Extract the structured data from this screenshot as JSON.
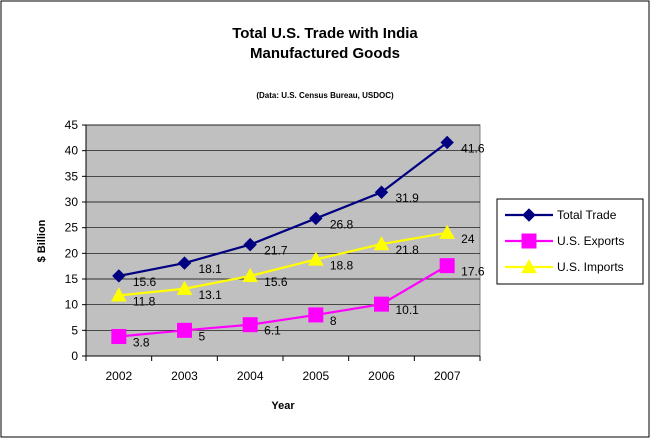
{
  "chart_data": {
    "type": "line",
    "title": "Total U.S. Trade with India",
    "subtitle": "Manufactured Goods",
    "source_note": "(Data:  U.S. Census Bureau, USDOC)",
    "xlabel": "Year",
    "ylabel": "$ Billion",
    "categories": [
      "2002",
      "2003",
      "2004",
      "2005",
      "2006",
      "2007"
    ],
    "ylim": [
      0,
      45
    ],
    "yticks": [
      0,
      5,
      10,
      15,
      20,
      25,
      30,
      35,
      40,
      45
    ],
    "grid": "horizontal",
    "plot_background": "#c0c0c0",
    "legend_position": "right",
    "series": [
      {
        "name": "Total Trade",
        "values": [
          15.6,
          18.1,
          21.7,
          26.8,
          31.9,
          41.6
        ],
        "labels": [
          "15.6",
          "18.1",
          "21.7",
          "26.8",
          "31.9",
          "41.6"
        ],
        "color": "#000080",
        "marker": "diamond"
      },
      {
        "name": "U.S. Exports",
        "values": [
          3.8,
          5,
          6.1,
          8,
          10.1,
          17.6
        ],
        "labels": [
          "3.8",
          "5",
          "6.1",
          "8",
          "10.1",
          "17.6"
        ],
        "color": "#ff00ff",
        "marker": "square"
      },
      {
        "name": "U.S. Imports",
        "values": [
          11.8,
          13.1,
          15.6,
          18.8,
          21.8,
          24
        ],
        "labels": [
          "11.8",
          "13.1",
          "15.6",
          "18.8",
          "21.8",
          "24"
        ],
        "color": "#ffff00",
        "marker": "triangle"
      }
    ]
  }
}
